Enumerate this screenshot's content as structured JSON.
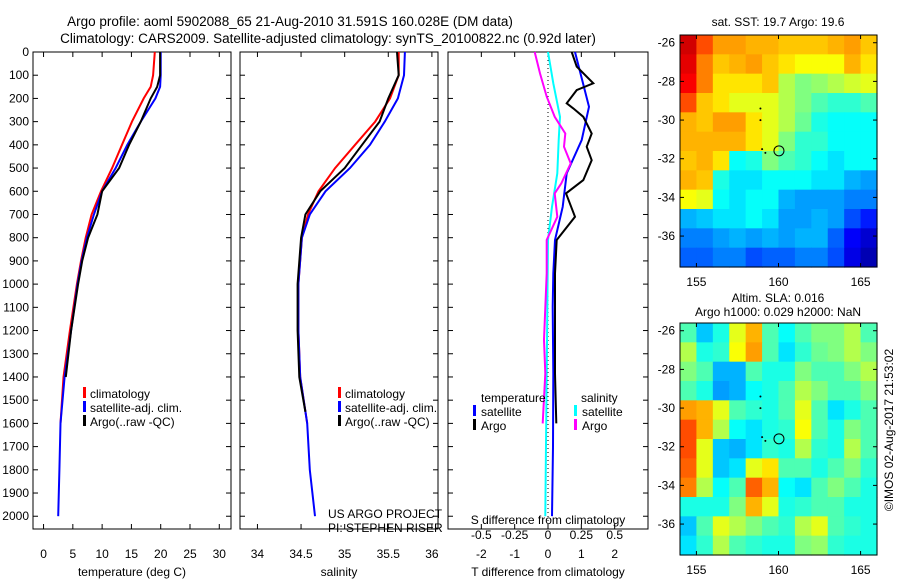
{
  "header": {
    "title_line1": "Argo profile: aoml 5902088_65 21-Aug-2010 31.591S 160.028E (DM data)",
    "title_line2": "Climatology: CARS2009. Satellite-adjusted climatology: synTS_20100822.nc (0.92d later)"
  },
  "credits": {
    "project": "US ARGO PROJECT",
    "pi": "PI: STEPHEN RISER",
    "timestamp": "©IMOS 02-Aug-2017 21:53:02"
  },
  "colors": {
    "climatology": "#ff0000",
    "satellite": "#0000ff",
    "argo": "#000000",
    "s_satellite": "#00ffff",
    "s_argo": "#ff00ff"
  },
  "chart_data": [
    {
      "type": "line",
      "title": "",
      "xlabel": "temperature (deg C)",
      "ylabel": "",
      "xlim": [
        -1.8,
        32
      ],
      "ylim": [
        2055,
        0
      ],
      "xticks": [
        0,
        5,
        10,
        15,
        20,
        25,
        30
      ],
      "xtick_labels": [
        "0",
        "5",
        "10",
        "15",
        "20",
        "25",
        "30"
      ],
      "yticks": [
        0,
        100,
        200,
        300,
        400,
        500,
        600,
        700,
        800,
        900,
        1000,
        1100,
        1200,
        1300,
        1400,
        1500,
        1600,
        1700,
        1800,
        1900,
        2000
      ],
      "ytick_labels": [
        "0",
        "100",
        "200",
        "300",
        "400",
        "500",
        "600",
        "700",
        "800",
        "900",
        "1000",
        "1100",
        "1200",
        "1300",
        "1400",
        "1500",
        "1600",
        "1700",
        "1800",
        "1900",
        "2000"
      ],
      "legend": {
        "placement": "lower-center",
        "entries": [
          "climatology",
          "satellite-adj. clim.",
          "Argo(..raw -QC)"
        ]
      },
      "series": [
        {
          "name": "climatology",
          "color": "#ff0000",
          "depth": [
            0,
            100,
            150,
            200,
            300,
            400,
            500,
            600,
            700,
            800,
            900,
            1000,
            1200,
            1400,
            1600
          ],
          "values": [
            19.0,
            18.7,
            18.3,
            17.1,
            15.1,
            13.4,
            11.7,
            9.8,
            8.2,
            7.2,
            6.4,
            5.7,
            4.5,
            3.4,
            2.9
          ]
        },
        {
          "name": "satellite-adj. clim.",
          "color": "#0000ff",
          "depth": [
            0,
            100,
            150,
            200,
            300,
            400,
            500,
            600,
            700,
            800,
            900,
            1000,
            1200,
            1400,
            1600,
            1800,
            2000
          ],
          "values": [
            20.0,
            20.0,
            19.9,
            19.1,
            16.6,
            14.3,
            12.3,
            10.0,
            8.6,
            7.4,
            6.5,
            5.8,
            4.7,
            3.6,
            2.9,
            2.7,
            2.5
          ]
        },
        {
          "name": "Argo(..raw -QC)",
          "color": "#000000",
          "depth": [
            0,
            100,
            150,
            200,
            300,
            400,
            500,
            600,
            700,
            800,
            900,
            1000,
            1200,
            1400
          ],
          "values": [
            19.9,
            19.9,
            19.4,
            18.3,
            16.6,
            14.6,
            12.9,
            10.0,
            9.2,
            7.6,
            6.6,
            5.9,
            4.7,
            3.8
          ]
        }
      ]
    },
    {
      "type": "line",
      "xlabel": "salinity",
      "xlim": [
        33.8,
        36.07
      ],
      "ylim": [
        2055,
        0
      ],
      "xticks": [
        34,
        34.5,
        35,
        35.5,
        36
      ],
      "xtick_labels": [
        "34",
        "34.5",
        "35",
        "35.5",
        "36"
      ],
      "legend": {
        "placement": "lower-right",
        "entries": [
          "climatology",
          "satellite-adj. clim.",
          "Argo(..raw -QC)"
        ]
      },
      "series": [
        {
          "name": "climatology",
          "color": "#ff0000",
          "depth": [
            0,
            100,
            200,
            300,
            400,
            500,
            600,
            700,
            800,
            1000,
            1200,
            1400,
            1600
          ],
          "values": [
            35.62,
            35.62,
            35.52,
            35.35,
            35.12,
            34.89,
            34.7,
            34.58,
            34.51,
            34.47,
            34.47,
            34.49,
            34.57
          ]
        },
        {
          "name": "satellite-adj. clim.",
          "color": "#0000ff",
          "depth": [
            0,
            100,
            200,
            300,
            400,
            500,
            600,
            700,
            800,
            1000,
            1200,
            1400,
            1600,
            1800,
            2000
          ],
          "values": [
            35.69,
            35.68,
            35.61,
            35.46,
            35.29,
            35.06,
            34.78,
            34.6,
            34.51,
            34.47,
            34.47,
            34.49,
            34.57,
            34.6,
            34.66
          ]
        },
        {
          "name": "Argo(..raw -QC)",
          "color": "#000000",
          "depth": [
            0,
            100,
            200,
            300,
            400,
            500,
            600,
            700,
            800,
            1000,
            1200,
            1400,
            1550
          ],
          "values": [
            35.6,
            35.62,
            35.5,
            35.4,
            35.2,
            35.0,
            34.72,
            34.55,
            34.5,
            34.46,
            34.46,
            34.48,
            34.55
          ]
        }
      ]
    },
    {
      "type": "line",
      "xlabel": "T difference from climatology",
      "x2label": "S difference from climatology",
      "xlim": [
        -3,
        3
      ],
      "x2lim": [
        -0.75,
        0.75
      ],
      "ylim": [
        2055,
        0
      ],
      "xticks": [
        -2,
        -1,
        0,
        1,
        2
      ],
      "xtick_labels": [
        "-2",
        "-1",
        "0",
        "1",
        "2"
      ],
      "x2ticks": [
        -0.5,
        -0.25,
        0,
        0.25,
        0.5
      ],
      "x2tick_labels": [
        "-0.5",
        "-0.25",
        "0",
        "0.25",
        "0.5"
      ],
      "legend": {
        "placement": "lower-center",
        "groups": [
          "temperature",
          "salinity"
        ],
        "entries": [
          "satellite",
          "Argo",
          "satellite",
          "Argo"
        ]
      },
      "series": [
        {
          "name": "T satellite",
          "axis": "T",
          "color": "#0000ff",
          "depth": [
            0,
            135,
            236,
            379,
            523,
            667,
            810,
            954,
            1098,
            1385,
            1700,
            2000
          ],
          "values": [
            0.81,
            1.05,
            1.23,
            1.01,
            0.56,
            0.44,
            0.21,
            0.16,
            0.14,
            0.16,
            0.15,
            0.12
          ]
        },
        {
          "name": "T Argo",
          "axis": "T",
          "color": "#000000",
          "depth": [
            0,
            63,
            135,
            164,
            221,
            243,
            279,
            351,
            408,
            466,
            552,
            609,
            710,
            810,
            954,
            1385,
            1600
          ],
          "values": [
            0.71,
            0.86,
            1.36,
            0.86,
            0.56,
            0.76,
            1.06,
            1.31,
            1.16,
            1.31,
            1.06,
            0.54,
            0.81,
            0.26,
            0.21,
            0.21,
            0.25
          ]
        },
        {
          "name": "S satellite",
          "axis": "S",
          "color": "#00ffff",
          "depth": [
            0,
            135,
            279,
            379,
            523,
            667,
            810,
            1385,
            2000
          ],
          "values": [
            0.0,
            0.04,
            0.09,
            0.08,
            0.07,
            0.03,
            0.0,
            -0.01,
            -0.02
          ]
        },
        {
          "name": "S Argo",
          "axis": "S",
          "color": "#ff00ff",
          "depth": [
            0,
            92,
            192,
            279,
            351,
            408,
            480,
            566,
            609,
            710,
            810,
            954,
            1240,
            1385,
            1600
          ],
          "values": [
            -0.1,
            -0.06,
            -0.01,
            0.05,
            0.13,
            0.12,
            0.17,
            0.1,
            0.05,
            0.07,
            -0.01,
            -0.01,
            -0.03,
            -0.02,
            -0.04
          ]
        }
      ]
    },
    {
      "type": "heatmap",
      "title": "sat. SST: 19.7 Argo: 19.6",
      "colormap": "jet",
      "xlim": [
        154,
        166
      ],
      "ylim": [
        -25.6,
        -37.6
      ],
      "xticks": [
        155,
        160,
        165
      ],
      "xtick_labels": [
        "155",
        "160",
        "165"
      ],
      "yticks": [
        -26,
        -28,
        -30,
        -32,
        -34,
        -36
      ],
      "ytick_labels": [
        "-26",
        "-28",
        "-30",
        "-32",
        "-34",
        "-36"
      ],
      "profile_location": [
        160.028,
        -31.591
      ],
      "track_points": [
        [
          158.9,
          -29.4
        ],
        [
          158.9,
          -30.0
        ],
        [
          159.0,
          -31.5
        ],
        [
          159.2,
          -31.7
        ]
      ],
      "grid_normalized": [
        [
          0.92,
          0.8,
          0.72,
          0.72,
          0.7,
          0.7,
          0.68,
          0.68,
          0.68,
          0.7,
          0.72,
          0.68
        ],
        [
          0.9,
          0.75,
          0.68,
          0.7,
          0.72,
          0.68,
          0.65,
          0.62,
          0.62,
          0.62,
          0.7,
          0.65
        ],
        [
          0.88,
          0.75,
          0.65,
          0.65,
          0.65,
          0.68,
          0.55,
          0.5,
          0.52,
          0.55,
          0.58,
          0.6
        ],
        [
          0.8,
          0.68,
          0.65,
          0.6,
          0.6,
          0.6,
          0.55,
          0.5,
          0.45,
          0.42,
          0.42,
          0.45
        ],
        [
          0.7,
          0.68,
          0.72,
          0.72,
          0.65,
          0.6,
          0.55,
          0.48,
          0.4,
          0.38,
          0.38,
          0.38
        ],
        [
          0.7,
          0.7,
          0.7,
          0.7,
          0.65,
          0.6,
          0.5,
          0.42,
          0.42,
          0.38,
          0.38,
          0.38
        ],
        [
          0.68,
          0.7,
          0.65,
          0.38,
          0.4,
          0.5,
          0.45,
          0.42,
          0.38,
          0.35,
          0.38,
          0.38
        ],
        [
          0.7,
          0.68,
          0.4,
          0.35,
          0.35,
          0.38,
          0.38,
          0.38,
          0.35,
          0.35,
          0.3,
          0.28
        ],
        [
          0.62,
          0.6,
          0.38,
          0.35,
          0.38,
          0.38,
          0.3,
          0.28,
          0.28,
          0.28,
          0.25,
          0.25
        ],
        [
          0.3,
          0.32,
          0.35,
          0.35,
          0.38,
          0.35,
          0.28,
          0.28,
          0.3,
          0.28,
          0.2,
          0.15
        ],
        [
          0.25,
          0.25,
          0.28,
          0.3,
          0.28,
          0.3,
          0.28,
          0.3,
          0.3,
          0.22,
          0.12,
          0.08
        ],
        [
          0.22,
          0.22,
          0.25,
          0.25,
          0.2,
          0.22,
          0.22,
          0.25,
          0.25,
          0.2,
          0.1,
          0.05
        ]
      ]
    },
    {
      "type": "heatmap",
      "title": "Altim. SLA: 0.016",
      "subtitle": "Argo h1000: 0.029 h2000: NaN",
      "colormap": "jet",
      "xlim": [
        154,
        166
      ],
      "ylim": [
        -25.6,
        -37.6
      ],
      "xticks": [
        155,
        160,
        165
      ],
      "xtick_labels": [
        "155",
        "160",
        "165"
      ],
      "yticks": [
        -26,
        -28,
        -30,
        -32,
        -34,
        -36
      ],
      "ytick_labels": [
        "-26",
        "-28",
        "-30",
        "-32",
        "-34",
        "-36"
      ],
      "profile_location": [
        160.028,
        -31.591
      ],
      "track_points": [
        [
          158.9,
          -29.4
        ],
        [
          158.9,
          -30.0
        ],
        [
          159.0,
          -31.5
        ],
        [
          159.2,
          -31.7
        ]
      ],
      "grid_normalized": [
        [
          0.45,
          0.32,
          0.4,
          0.6,
          0.7,
          0.45,
          0.38,
          0.45,
          0.5,
          0.5,
          0.55,
          0.45
        ],
        [
          0.55,
          0.4,
          0.42,
          0.62,
          0.72,
          0.45,
          0.35,
          0.42,
          0.48,
          0.5,
          0.55,
          0.5
        ],
        [
          0.5,
          0.45,
          0.3,
          0.3,
          0.45,
          0.4,
          0.4,
          0.5,
          0.45,
          0.45,
          0.5,
          0.55
        ],
        [
          0.45,
          0.4,
          0.28,
          0.3,
          0.38,
          0.4,
          0.45,
          0.55,
          0.5,
          0.45,
          0.45,
          0.5
        ],
        [
          0.72,
          0.7,
          0.6,
          0.45,
          0.42,
          0.4,
          0.45,
          0.6,
          0.45,
          0.35,
          0.4,
          0.45
        ],
        [
          0.8,
          0.7,
          0.55,
          0.38,
          0.35,
          0.4,
          0.42,
          0.62,
          0.45,
          0.4,
          0.5,
          0.45
        ],
        [
          0.8,
          0.6,
          0.32,
          0.3,
          0.35,
          0.42,
          0.4,
          0.55,
          0.42,
          0.4,
          0.55,
          0.45
        ],
        [
          0.78,
          0.6,
          0.32,
          0.35,
          0.6,
          0.65,
          0.45,
          0.45,
          0.4,
          0.45,
          0.5,
          0.42
        ],
        [
          0.75,
          0.55,
          0.38,
          0.45,
          0.78,
          0.7,
          0.38,
          0.35,
          0.45,
          0.5,
          0.45,
          0.4
        ],
        [
          0.4,
          0.4,
          0.4,
          0.5,
          0.7,
          0.6,
          0.4,
          0.42,
          0.45,
          0.45,
          0.4,
          0.4
        ],
        [
          0.32,
          0.45,
          0.6,
          0.55,
          0.5,
          0.45,
          0.42,
          0.55,
          0.6,
          0.45,
          0.42,
          0.4
        ],
        [
          0.35,
          0.42,
          0.55,
          0.45,
          0.42,
          0.4,
          0.4,
          0.5,
          0.52,
          0.42,
          0.4,
          0.4
        ]
      ]
    }
  ]
}
